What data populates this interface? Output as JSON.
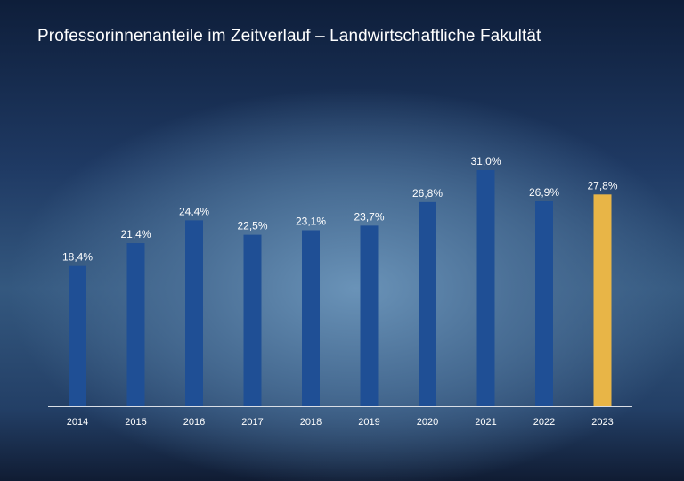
{
  "chart_data": {
    "type": "bar",
    "title": "Professorinnenanteile im Zeitverlauf – Landwirtschaftliche Fakultät",
    "xlabel": "",
    "ylabel": "",
    "ylim": [
      0,
      33
    ],
    "grid": false,
    "categories": [
      "2014",
      "2015",
      "2016",
      "2017",
      "2018",
      "2019",
      "2020",
      "2021",
      "2022",
      "2023"
    ],
    "values": [
      18.4,
      21.4,
      24.4,
      22.5,
      23.1,
      23.7,
      26.8,
      31.0,
      26.9,
      27.8
    ],
    "value_labels": [
      "18,4%",
      "21,4%",
      "24,4%",
      "22,5%",
      "23,1%",
      "23,7%",
      "26,8%",
      "31,0%",
      "26,9%",
      "27,8%"
    ],
    "highlight_category": "2023",
    "colors": {
      "bar": "#1f4f95",
      "highlight": "#e8b547",
      "axis": "#d9dee6",
      "text": "#ffffff"
    }
  }
}
